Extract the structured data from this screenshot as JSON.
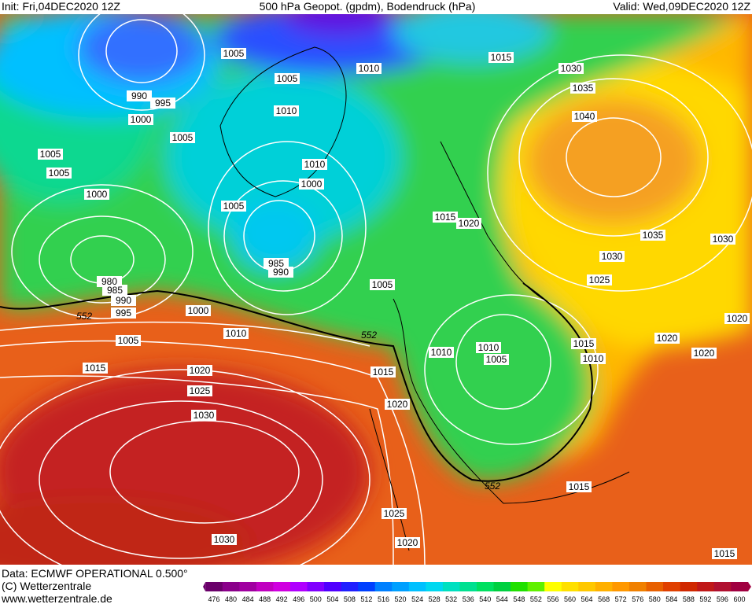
{
  "header": {
    "init": "Init: Fri,04DEC2020 12Z",
    "title": "500 hPa Geopot. (gpdm), Bodendruck (hPa)",
    "valid": "Valid: Wed,09DEC2020 12Z"
  },
  "footer": {
    "data": "Data: ECMWF OPERATIONAL 0.500°",
    "copyright": "(C) Wetterzentrale",
    "url": "www.wetterzentrale.de"
  },
  "isobar_labels": [
    1005,
    1005,
    990,
    995,
    1000,
    1005,
    1010,
    1005,
    1005,
    1000,
    1010,
    1000,
    1005,
    985,
    990,
    980,
    985,
    990,
    995,
    1000,
    1005,
    1010,
    1015,
    1020,
    1025,
    1030,
    1030,
    1005,
    1015,
    1020,
    1025,
    1020,
    1010,
    1015,
    1030,
    1035,
    1040,
    1015,
    1020,
    1035,
    1030,
    1030,
    1025,
    1010,
    1010,
    1005,
    1015,
    1010,
    1020,
    1020,
    1020,
    1015,
    1015
  ],
  "contour_552_labels": [
    552,
    552,
    552
  ],
  "colorbar": {
    "levels": [
      476,
      480,
      484,
      488,
      492,
      496,
      500,
      504,
      508,
      512,
      516,
      520,
      524,
      528,
      532,
      536,
      540,
      544,
      548,
      552,
      556,
      560,
      564,
      568,
      572,
      576,
      580,
      584,
      588,
      592,
      596,
      600
    ],
    "colors": [
      "#6a006a",
      "#8a008a",
      "#a000a0",
      "#c000c0",
      "#d000e0",
      "#b000ff",
      "#8000ff",
      "#5000ff",
      "#2020ff",
      "#0040ff",
      "#0080ff",
      "#00a0ff",
      "#00c0ff",
      "#00d8f0",
      "#00e0c0",
      "#00e090",
      "#00e060",
      "#00d040",
      "#20e000",
      "#60f000",
      "#ffff00",
      "#ffe000",
      "#ffc800",
      "#ffb000",
      "#ff9800",
      "#f08000",
      "#e86000",
      "#e04000",
      "#d02800",
      "#c01818",
      "#b01030",
      "#a00040"
    ]
  }
}
